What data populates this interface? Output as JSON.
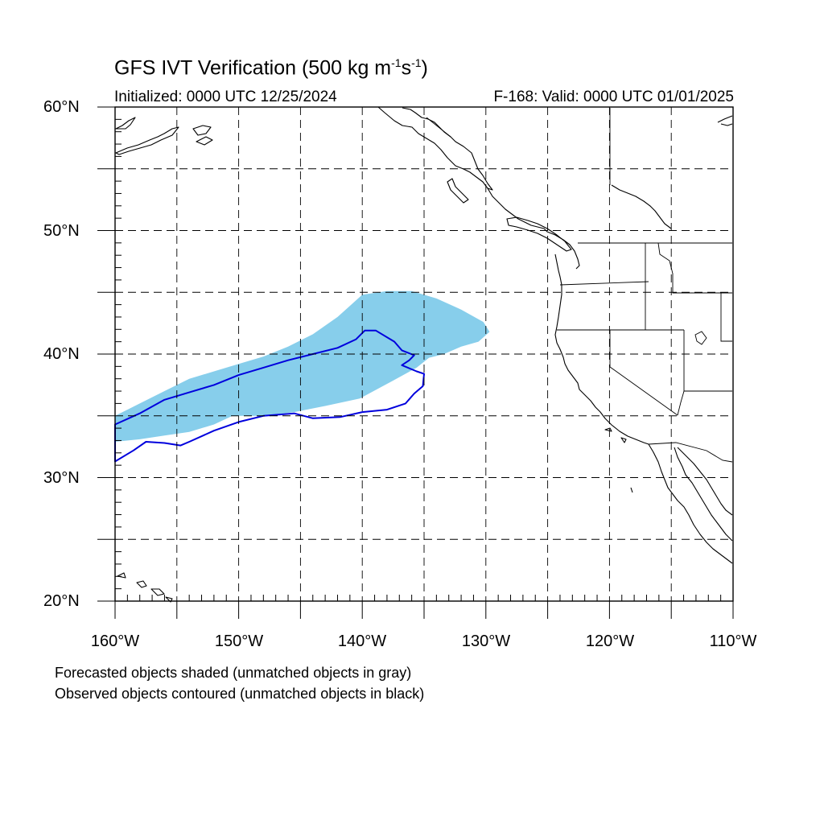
{
  "title": {
    "main": "GFS IVT Verification (500 kg m",
    "exp1": "-1",
    "mid": "s",
    "exp2": "-1",
    "close": ")"
  },
  "initialized": "Initialized: 0000 UTC 12/25/2024",
  "valid": "F-168: Valid: 0000 UTC 01/01/2025",
  "lat_labels": [
    "60°N",
    "50°N",
    "40°N",
    "30°N",
    "20°N"
  ],
  "lon_labels": [
    "160°W",
    "150°W",
    "140°W",
    "130°W",
    "120°W",
    "110°W"
  ],
  "captions": [
    "Forecasted objects shaded (unmatched objects in gray)",
    "Observed objects contoured (unmatched objects in black)"
  ],
  "colors": {
    "forecast_fill": "#87ceeb",
    "observed_contour": "#0000dd",
    "coastline": "#000000",
    "grid": "#000000"
  },
  "map_extent": {
    "lon_min": -160,
    "lon_max": -110,
    "lat_min": 20,
    "lat_max": 60
  },
  "forecast_object": [
    [
      -160,
      35.0
    ],
    [
      -158,
      36.0
    ],
    [
      -156,
      37.0
    ],
    [
      -154,
      38.0
    ],
    [
      -152,
      38.6
    ],
    [
      -150,
      39.2
    ],
    [
      -148,
      39.8
    ],
    [
      -146,
      40.6
    ],
    [
      -144,
      41.6
    ],
    [
      -142,
      43.0
    ],
    [
      -140,
      44.8
    ],
    [
      -138,
      45.1
    ],
    [
      -136,
      45.1
    ],
    [
      -134,
      44.5
    ],
    [
      -132,
      43.6
    ],
    [
      -130.2,
      42.6
    ],
    [
      -129.7,
      41.8
    ],
    [
      -130.6,
      41.0
    ],
    [
      -132,
      40.6
    ],
    [
      -133.4,
      40.0
    ],
    [
      -134.6,
      39.7
    ],
    [
      -135.6,
      38.9
    ],
    [
      -137.6,
      37.8
    ],
    [
      -140.2,
      36.4
    ],
    [
      -143,
      35.8
    ],
    [
      -145.5,
      35.3
    ],
    [
      -148,
      35.0
    ],
    [
      -150.5,
      35.0
    ],
    [
      -152,
      34.3
    ],
    [
      -154,
      33.7
    ],
    [
      -156,
      33.4
    ],
    [
      -158,
      33.1
    ],
    [
      -160,
      32.9
    ]
  ],
  "observed_object": [
    [
      -160,
      34.3
    ],
    [
      -158,
      35.2
    ],
    [
      -156,
      36.3
    ],
    [
      -154,
      36.9
    ],
    [
      -152,
      37.5
    ],
    [
      -150,
      38.3
    ],
    [
      -148,
      38.9
    ],
    [
      -146,
      39.5
    ],
    [
      -144,
      40.0
    ],
    [
      -142,
      40.5
    ],
    [
      -140.5,
      41.2
    ],
    [
      -139.8,
      41.9
    ],
    [
      -138.9,
      41.9
    ],
    [
      -137.4,
      41.0
    ],
    [
      -136.8,
      40.3
    ],
    [
      -135.8,
      39.9
    ],
    [
      -136.2,
      39.5
    ],
    [
      -136.8,
      39.1
    ],
    [
      -135.6,
      38.6
    ],
    [
      -135.0,
      38.4
    ],
    [
      -135.1,
      37.4
    ],
    [
      -135.8,
      36.8
    ],
    [
      -136.5,
      36.0
    ],
    [
      -138,
      35.5
    ],
    [
      -140,
      35.3
    ],
    [
      -141.8,
      34.9
    ],
    [
      -144,
      34.8
    ],
    [
      -145.5,
      35.2
    ],
    [
      -148,
      35.0
    ],
    [
      -150,
      34.5
    ],
    [
      -152,
      33.8
    ],
    [
      -154,
      32.9
    ],
    [
      -154.7,
      32.6
    ],
    [
      -156,
      32.8
    ],
    [
      -157.5,
      32.9
    ],
    [
      -158.5,
      32.2
    ],
    [
      -160,
      31.3
    ]
  ]
}
